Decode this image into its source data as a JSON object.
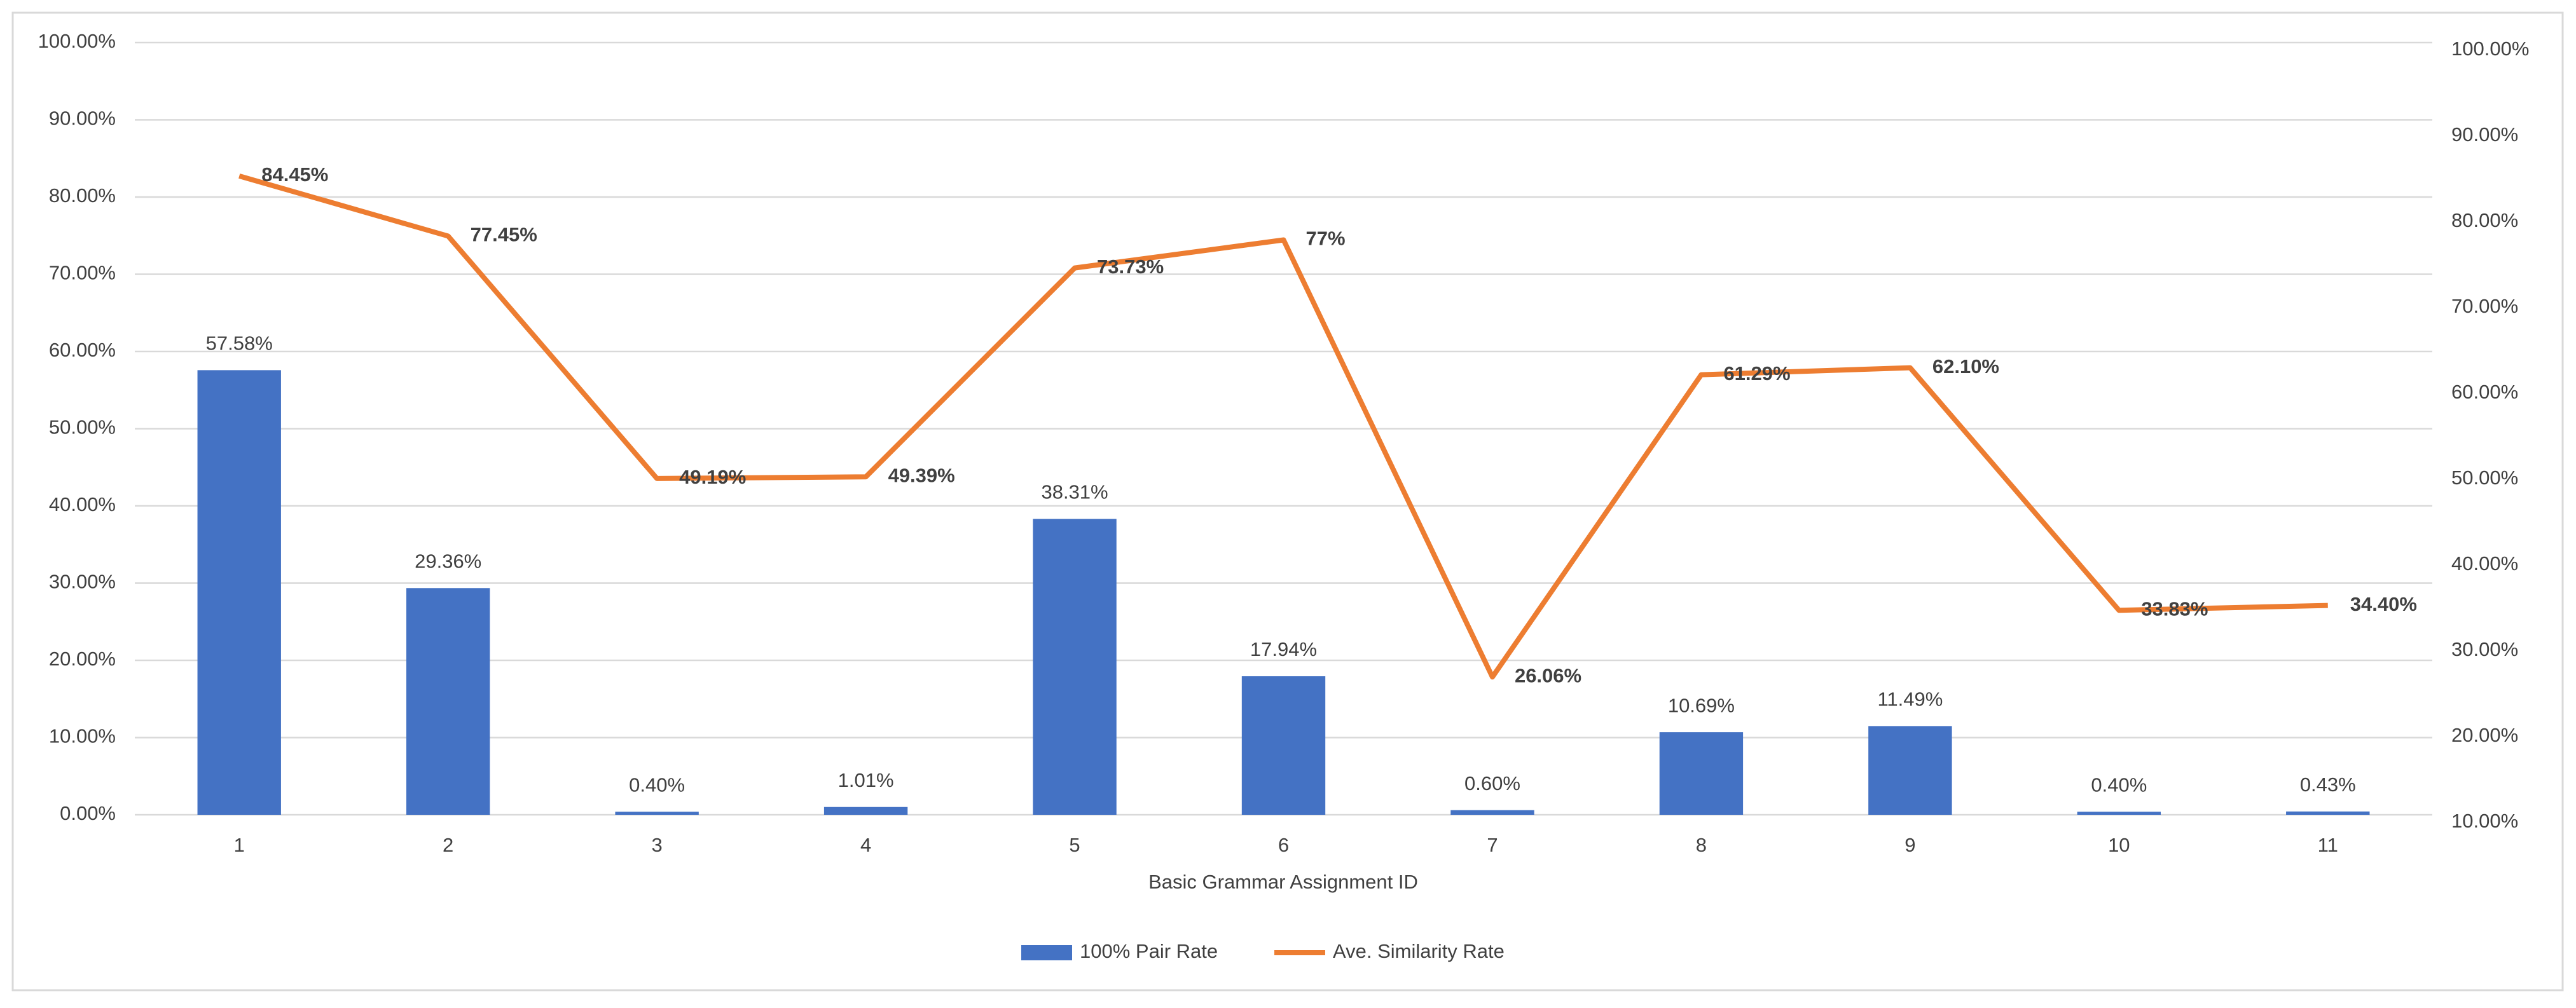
{
  "chart_data": {
    "type": "bar",
    "x_label": "Basic Grammar Assignment ID",
    "categories": [
      "1",
      "2",
      "3",
      "4",
      "5",
      "6",
      "7",
      "8",
      "9",
      "10",
      "11"
    ],
    "series": [
      {
        "name": "100% Pair Rate",
        "type": "bar",
        "color": "#4472c4",
        "values": [
          57.58,
          29.36,
          0.4,
          1.01,
          38.31,
          17.94,
          0.6,
          10.69,
          11.49,
          0.4,
          0.43
        ],
        "value_labels": [
          "57.58%",
          "29.36%",
          "0.40%",
          "1.01%",
          "38.31%",
          "17.94%",
          "0.60%",
          "10.69%",
          "11.49%",
          "0.40%",
          "0.43%"
        ]
      },
      {
        "name": "Ave. Similarity Rate",
        "type": "line",
        "axis": "y2",
        "color": "#ed7d31",
        "values": [
          84.45,
          77.45,
          49.19,
          49.39,
          73.73,
          77,
          26.06,
          61.29,
          62.1,
          33.83,
          34.4
        ],
        "value_labels": [
          "84.45%",
          "77.45%",
          "49.19%",
          "49.39%",
          "73.73%",
          "77%",
          "26.06%",
          "61.29%",
          "62.10%",
          "33.83%",
          "34.40%"
        ]
      }
    ],
    "ylim": [
      0,
      100
    ],
    "yticks": [
      {
        "value": 0,
        "label": "0.00%"
      },
      {
        "value": 10,
        "label": "10.00%"
      },
      {
        "value": 20,
        "label": "20.00%"
      },
      {
        "value": 30,
        "label": "30.00%"
      },
      {
        "value": 40,
        "label": "40.00%"
      },
      {
        "value": 50,
        "label": "50.00%"
      },
      {
        "value": 60,
        "label": "60.00%"
      },
      {
        "value": 70,
        "label": "70.00%"
      },
      {
        "value": 80,
        "label": "80.00%"
      },
      {
        "value": 90,
        "label": "90.00%"
      },
      {
        "value": 100,
        "label": "100.00%"
      }
    ],
    "y2lim": [
      10,
      100
    ],
    "y2ticks": [
      {
        "value": 10,
        "label": "10.00%"
      },
      {
        "value": 20,
        "label": "20.00%"
      },
      {
        "value": 30,
        "label": "30.00%"
      },
      {
        "value": 40,
        "label": "40.00%"
      },
      {
        "value": 50,
        "label": "50.00%"
      },
      {
        "value": 60,
        "label": "60.00%"
      },
      {
        "value": 70,
        "label": "70.00%"
      },
      {
        "value": 80,
        "label": "80.00%"
      },
      {
        "value": 90,
        "label": "90.00%"
      },
      {
        "value": 100,
        "label": "100.00%"
      }
    ],
    "grid": true,
    "legend": "bottom"
  }
}
